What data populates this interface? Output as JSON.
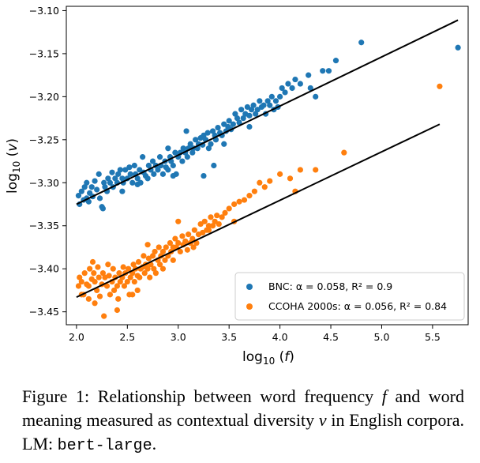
{
  "chart_data": {
    "type": "scatter",
    "xlabel": "log10(f)",
    "ylabel": "log10(v)",
    "xlim": [
      1.9,
      5.85
    ],
    "ylim": [
      -3.465,
      -3.095
    ],
    "xticks": [
      2.0,
      2.5,
      3.0,
      3.5,
      4.0,
      4.5,
      5.0,
      5.5
    ],
    "xtick_labels": [
      "2.0",
      "2.5",
      "3.0",
      "3.5",
      "4.0",
      "4.5",
      "5.0",
      "5.5"
    ],
    "yticks": [
      -3.1,
      -3.15,
      -3.2,
      -3.25,
      -3.3,
      -3.35,
      -3.4,
      -3.45
    ],
    "ytick_labels": [
      "−3.10",
      "−3.15",
      "−3.20",
      "−3.25",
      "−3.30",
      "−3.35",
      "−3.40",
      "−3.45"
    ],
    "legend_position": "lower-right",
    "series": [
      {
        "name": "BNC",
        "legend": "BNC: α = 0.058, R² = 0.9",
        "color": "#1f77b4",
        "fit_line": {
          "x": [
            2.0,
            5.75
          ],
          "y": [
            -3.325,
            -3.111
          ]
        },
        "points": [
          [
            2.02,
            -3.315
          ],
          [
            2.03,
            -3.325
          ],
          [
            2.05,
            -3.31
          ],
          [
            2.07,
            -3.32
          ],
          [
            2.08,
            -3.305
          ],
          [
            2.1,
            -3.318
          ],
          [
            2.12,
            -3.322
          ],
          [
            2.13,
            -3.312
          ],
          [
            2.15,
            -3.305
          ],
          [
            2.16,
            -3.316
          ],
          [
            2.18,
            -3.298
          ],
          [
            2.2,
            -3.308
          ],
          [
            2.22,
            -3.29
          ],
          [
            2.23,
            -3.318
          ],
          [
            2.25,
            -3.328
          ],
          [
            2.26,
            -3.33
          ],
          [
            2.27,
            -3.3
          ],
          [
            2.28,
            -3.305
          ],
          [
            2.3,
            -3.31
          ],
          [
            2.31,
            -3.295
          ],
          [
            2.33,
            -3.3
          ],
          [
            2.35,
            -3.288
          ],
          [
            2.36,
            -3.305
          ],
          [
            2.38,
            -3.295
          ],
          [
            2.4,
            -3.3
          ],
          [
            2.41,
            -3.29
          ],
          [
            2.43,
            -3.285
          ],
          [
            2.45,
            -3.295
          ],
          [
            2.46,
            -3.3
          ],
          [
            2.48,
            -3.285
          ],
          [
            2.5,
            -3.295
          ],
          [
            2.52,
            -3.282
          ],
          [
            2.53,
            -3.29
          ],
          [
            2.55,
            -3.3
          ],
          [
            2.57,
            -3.28
          ],
          [
            2.58,
            -3.29
          ],
          [
            2.6,
            -3.295
          ],
          [
            2.62,
            -3.285
          ],
          [
            2.63,
            -3.3
          ],
          [
            2.65,
            -3.27
          ],
          [
            2.66,
            -3.288
          ],
          [
            2.68,
            -3.292
          ],
          [
            2.7,
            -3.295
          ],
          [
            2.71,
            -3.28
          ],
          [
            2.73,
            -3.285
          ],
          [
            2.75,
            -3.275
          ],
          [
            2.76,
            -3.29
          ],
          [
            2.78,
            -3.28
          ],
          [
            2.8,
            -3.285
          ],
          [
            2.82,
            -3.27
          ],
          [
            2.83,
            -3.28
          ],
          [
            2.85,
            -3.29
          ],
          [
            2.87,
            -3.275
          ],
          [
            2.88,
            -3.282
          ],
          [
            2.9,
            -3.285
          ],
          [
            2.92,
            -3.27
          ],
          [
            2.93,
            -3.275
          ],
          [
            2.95,
            -3.28
          ],
          [
            2.97,
            -3.265
          ],
          [
            2.98,
            -3.29
          ],
          [
            3.0,
            -3.27
          ],
          [
            3.02,
            -3.265
          ],
          [
            3.04,
            -3.275
          ],
          [
            3.05,
            -3.26
          ],
          [
            3.07,
            -3.265
          ],
          [
            3.09,
            -3.27
          ],
          [
            3.1,
            -3.26
          ],
          [
            3.12,
            -3.255
          ],
          [
            3.14,
            -3.265
          ],
          [
            3.15,
            -3.26
          ],
          [
            3.17,
            -3.25
          ],
          [
            3.19,
            -3.26
          ],
          [
            3.2,
            -3.255
          ],
          [
            3.22,
            -3.248
          ],
          [
            3.24,
            -3.256
          ],
          [
            3.25,
            -3.245
          ],
          [
            3.27,
            -3.25
          ],
          [
            3.29,
            -3.242
          ],
          [
            3.3,
            -3.26
          ],
          [
            3.32,
            -3.255
          ],
          [
            3.34,
            -3.24
          ],
          [
            3.36,
            -3.245
          ],
          [
            3.37,
            -3.25
          ],
          [
            3.39,
            -3.236
          ],
          [
            3.41,
            -3.242
          ],
          [
            3.43,
            -3.245
          ],
          [
            3.45,
            -3.232
          ],
          [
            3.47,
            -3.24
          ],
          [
            3.49,
            -3.235
          ],
          [
            3.5,
            -3.228
          ],
          [
            3.52,
            -3.238
          ],
          [
            3.54,
            -3.232
          ],
          [
            3.56,
            -3.22
          ],
          [
            3.58,
            -3.225
          ],
          [
            3.6,
            -3.23
          ],
          [
            3.62,
            -3.215
          ],
          [
            3.64,
            -3.225
          ],
          [
            3.66,
            -3.22
          ],
          [
            3.68,
            -3.212
          ],
          [
            3.7,
            -3.222
          ],
          [
            3.72,
            -3.215
          ],
          [
            3.74,
            -3.21
          ],
          [
            3.76,
            -3.22
          ],
          [
            3.78,
            -3.215
          ],
          [
            3.8,
            -3.205
          ],
          [
            3.82,
            -3.212
          ],
          [
            3.84,
            -3.21
          ],
          [
            3.86,
            -3.22
          ],
          [
            3.88,
            -3.205
          ],
          [
            3.9,
            -3.21
          ],
          [
            3.92,
            -3.2
          ],
          [
            3.94,
            -3.215
          ],
          [
            3.96,
            -3.205
          ],
          [
            3.98,
            -3.212
          ],
          [
            4.0,
            -3.2
          ],
          [
            4.02,
            -3.19
          ],
          [
            4.05,
            -3.195
          ],
          [
            4.08,
            -3.185
          ],
          [
            4.12,
            -3.19
          ],
          [
            4.15,
            -3.18
          ],
          [
            4.2,
            -3.185
          ],
          [
            4.28,
            -3.175
          ],
          [
            4.3,
            -3.19
          ],
          [
            4.35,
            -3.2
          ],
          [
            4.42,
            -3.17
          ],
          [
            4.48,
            -3.17
          ],
          [
            4.55,
            -3.158
          ],
          [
            4.8,
            -3.137
          ],
          [
            3.25,
            -3.292
          ],
          [
            2.95,
            -3.292
          ],
          [
            2.6,
            -3.302
          ],
          [
            3.45,
            -3.255
          ],
          [
            3.08,
            -3.24
          ],
          [
            2.1,
            -3.3
          ],
          [
            2.45,
            -3.31
          ],
          [
            3.7,
            -3.235
          ],
          [
            3.35,
            -3.28
          ],
          [
            2.9,
            -3.26
          ],
          [
            5.75,
            -3.143
          ]
        ]
      },
      {
        "name": "CCOHA 2000s",
        "legend": "CCOHA 2000s: α = 0.056, R² = 0.84",
        "color": "#ff7f0e",
        "fit_line": {
          "x": [
            2.0,
            5.57
          ],
          "y": [
            -3.433,
            -3.232
          ]
        },
        "points": [
          [
            2.02,
            -3.42
          ],
          [
            2.03,
            -3.41
          ],
          [
            2.05,
            -3.415
          ],
          [
            2.07,
            -3.43
          ],
          [
            2.08,
            -3.405
          ],
          [
            2.1,
            -3.418
          ],
          [
            2.12,
            -3.42
          ],
          [
            2.13,
            -3.4
          ],
          [
            2.15,
            -3.412
          ],
          [
            2.16,
            -3.392
          ],
          [
            2.17,
            -3.405
          ],
          [
            2.18,
            -3.415
          ],
          [
            2.2,
            -3.425
          ],
          [
            2.21,
            -3.398
          ],
          [
            2.22,
            -3.41
          ],
          [
            2.23,
            -3.432
          ],
          [
            2.25,
            -3.418
          ],
          [
            2.26,
            -3.405
          ],
          [
            2.27,
            -3.455
          ],
          [
            2.28,
            -3.41
          ],
          [
            2.3,
            -3.42
          ],
          [
            2.31,
            -3.395
          ],
          [
            2.32,
            -3.408
          ],
          [
            2.33,
            -3.43
          ],
          [
            2.35,
            -3.415
          ],
          [
            2.36,
            -3.4
          ],
          [
            2.37,
            -3.425
          ],
          [
            2.38,
            -3.41
          ],
          [
            2.4,
            -3.42
          ],
          [
            2.41,
            -3.435
          ],
          [
            2.42,
            -3.405
          ],
          [
            2.43,
            -3.415
          ],
          [
            2.45,
            -3.41
          ],
          [
            2.46,
            -3.398
          ],
          [
            2.47,
            -3.42
          ],
          [
            2.48,
            -3.405
          ],
          [
            2.5,
            -3.415
          ],
          [
            2.51,
            -3.4
          ],
          [
            2.52,
            -3.43
          ],
          [
            2.53,
            -3.41
          ],
          [
            2.55,
            -3.405
          ],
          [
            2.56,
            -3.395
          ],
          [
            2.57,
            -3.415
          ],
          [
            2.58,
            -3.4
          ],
          [
            2.6,
            -3.408
          ],
          [
            2.61,
            -3.392
          ],
          [
            2.62,
            -3.41
          ],
          [
            2.63,
            -3.4
          ],
          [
            2.65,
            -3.398
          ],
          [
            2.66,
            -3.385
          ],
          [
            2.67,
            -3.405
          ],
          [
            2.68,
            -3.395
          ],
          [
            2.7,
            -3.4
          ],
          [
            2.71,
            -3.388
          ],
          [
            2.72,
            -3.41
          ],
          [
            2.73,
            -3.395
          ],
          [
            2.75,
            -3.385
          ],
          [
            2.76,
            -3.4
          ],
          [
            2.77,
            -3.38
          ],
          [
            2.78,
            -3.405
          ],
          [
            2.8,
            -3.39
          ],
          [
            2.81,
            -3.375
          ],
          [
            2.82,
            -3.395
          ],
          [
            2.83,
            -3.385
          ],
          [
            2.85,
            -3.38
          ],
          [
            2.87,
            -3.39
          ],
          [
            2.88,
            -3.375
          ],
          [
            2.9,
            -3.385
          ],
          [
            2.92,
            -3.37
          ],
          [
            2.93,
            -3.38
          ],
          [
            2.95,
            -3.39
          ],
          [
            2.97,
            -3.365
          ],
          [
            2.98,
            -3.375
          ],
          [
            3.0,
            -3.37
          ],
          [
            3.02,
            -3.38
          ],
          [
            3.04,
            -3.362
          ],
          [
            3.05,
            -3.372
          ],
          [
            3.07,
            -3.368
          ],
          [
            3.09,
            -3.378
          ],
          [
            3.1,
            -3.36
          ],
          [
            3.12,
            -3.37
          ],
          [
            3.14,
            -3.365
          ],
          [
            3.16,
            -3.355
          ],
          [
            3.18,
            -3.37
          ],
          [
            3.2,
            -3.36
          ],
          [
            3.22,
            -3.348
          ],
          [
            3.24,
            -3.358
          ],
          [
            3.26,
            -3.345
          ],
          [
            3.28,
            -3.355
          ],
          [
            3.3,
            -3.35
          ],
          [
            3.32,
            -3.34
          ],
          [
            3.34,
            -3.35
          ],
          [
            3.36,
            -3.345
          ],
          [
            3.38,
            -3.338
          ],
          [
            3.4,
            -3.348
          ],
          [
            3.43,
            -3.34
          ],
          [
            3.46,
            -3.335
          ],
          [
            3.5,
            -3.33
          ],
          [
            3.55,
            -3.325
          ],
          [
            3.6,
            -3.322
          ],
          [
            3.65,
            -3.32
          ],
          [
            3.7,
            -3.315
          ],
          [
            3.75,
            -3.31
          ],
          [
            3.8,
            -3.3
          ],
          [
            3.85,
            -3.305
          ],
          [
            3.9,
            -3.298
          ],
          [
            4.0,
            -3.29
          ],
          [
            4.1,
            -3.295
          ],
          [
            4.15,
            -3.31
          ],
          [
            4.2,
            -3.285
          ],
          [
            4.35,
            -3.285
          ],
          [
            4.63,
            -3.265
          ],
          [
            5.57,
            -3.188
          ],
          [
            2.18,
            -3.44
          ],
          [
            2.12,
            -3.435
          ],
          [
            2.4,
            -3.448
          ],
          [
            2.85,
            -3.4
          ],
          [
            3.0,
            -3.345
          ],
          [
            2.6,
            -3.425
          ],
          [
            3.55,
            -3.345
          ],
          [
            2.7,
            -3.372
          ],
          [
            3.15,
            -3.375
          ],
          [
            3.3,
            -3.355
          ],
          [
            2.95,
            -3.375
          ],
          [
            2.55,
            -3.43
          ],
          [
            2.05,
            -3.43
          ]
        ]
      }
    ]
  },
  "caption": {
    "prefix": "Figure 1: Relationship between word frequency ",
    "var_f": "f",
    "middle": " and word meaning measured as contextual diversity ",
    "var_v": "v",
    "mid2": " in English corpora. LM: ",
    "lm": "bert-large",
    "end": "."
  }
}
